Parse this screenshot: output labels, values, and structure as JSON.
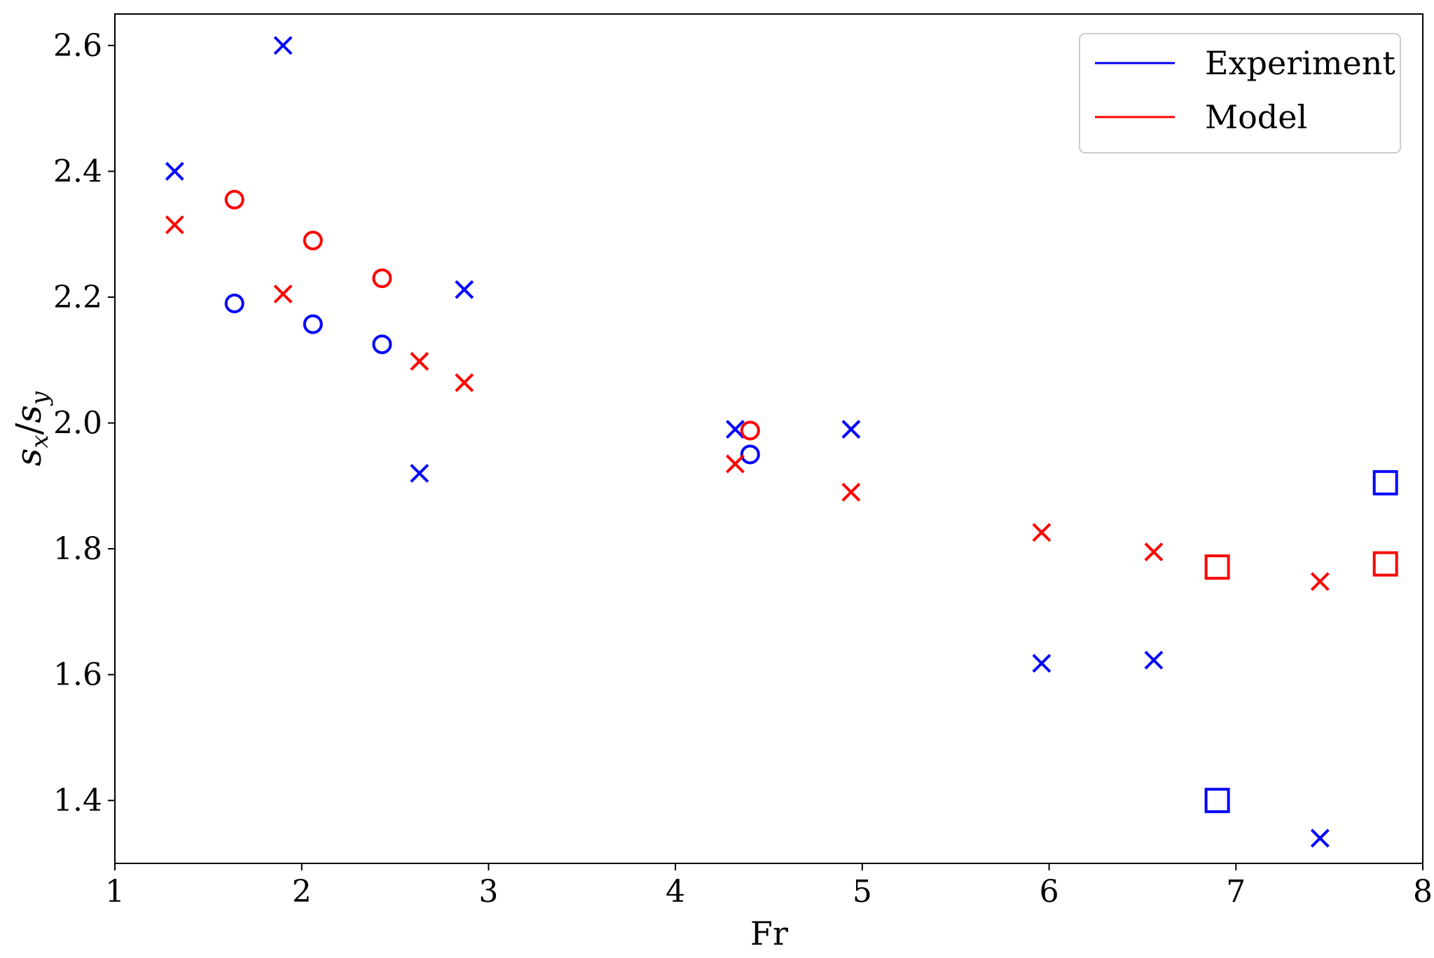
{
  "chart_data": {
    "type": "scatter",
    "xlabel": "Fr",
    "ylabel": {
      "base": "s",
      "num_sub": "x",
      "den_sub": "y"
    },
    "xlim": [
      1,
      8
    ],
    "ylim": [
      1.3,
      2.65
    ],
    "xticks": [
      "1",
      "2",
      "3",
      "4",
      "5",
      "6",
      "7",
      "8"
    ],
    "yticks": [
      "1.4",
      "1.6",
      "1.8",
      "2.0",
      "2.2",
      "2.4",
      "2.6"
    ],
    "grid": false,
    "legend": {
      "position": "top-right",
      "entries": [
        {
          "label": "Experiment",
          "color": "#0000ff"
        },
        {
          "label": "Model",
          "color": "#ff0000"
        }
      ]
    },
    "series": [
      {
        "name": "Experiment",
        "color": "#0000ff",
        "points": [
          {
            "x": 1.32,
            "y": 2.4,
            "marker": "x"
          },
          {
            "x": 1.9,
            "y": 2.6,
            "marker": "x"
          },
          {
            "x": 1.64,
            "y": 2.19,
            "marker": "o"
          },
          {
            "x": 2.06,
            "y": 2.157,
            "marker": "o"
          },
          {
            "x": 2.43,
            "y": 2.125,
            "marker": "o"
          },
          {
            "x": 2.63,
            "y": 1.92,
            "marker": "x"
          },
          {
            "x": 2.87,
            "y": 2.212,
            "marker": "x"
          },
          {
            "x": 4.32,
            "y": 1.99,
            "marker": "x"
          },
          {
            "x": 4.4,
            "y": 1.95,
            "marker": "o"
          },
          {
            "x": 4.94,
            "y": 1.99,
            "marker": "x"
          },
          {
            "x": 5.96,
            "y": 1.618,
            "marker": "x"
          },
          {
            "x": 6.56,
            "y": 1.623,
            "marker": "x"
          },
          {
            "x": 6.9,
            "y": 1.4,
            "marker": "s"
          },
          {
            "x": 7.45,
            "y": 1.34,
            "marker": "x"
          },
          {
            "x": 7.8,
            "y": 1.905,
            "marker": "s"
          }
        ]
      },
      {
        "name": "Model",
        "color": "#ff0000",
        "points": [
          {
            "x": 1.32,
            "y": 2.315,
            "marker": "x"
          },
          {
            "x": 1.64,
            "y": 2.355,
            "marker": "o"
          },
          {
            "x": 1.9,
            "y": 2.205,
            "marker": "x"
          },
          {
            "x": 2.06,
            "y": 2.29,
            "marker": "o"
          },
          {
            "x": 2.43,
            "y": 2.23,
            "marker": "o"
          },
          {
            "x": 2.63,
            "y": 2.098,
            "marker": "x"
          },
          {
            "x": 2.87,
            "y": 2.064,
            "marker": "x"
          },
          {
            "x": 4.32,
            "y": 1.935,
            "marker": "x"
          },
          {
            "x": 4.4,
            "y": 1.988,
            "marker": "o"
          },
          {
            "x": 4.94,
            "y": 1.89,
            "marker": "x"
          },
          {
            "x": 5.96,
            "y": 1.826,
            "marker": "x"
          },
          {
            "x": 6.56,
            "y": 1.795,
            "marker": "x"
          },
          {
            "x": 6.9,
            "y": 1.771,
            "marker": "s"
          },
          {
            "x": 7.45,
            "y": 1.748,
            "marker": "x"
          },
          {
            "x": 7.8,
            "y": 1.776,
            "marker": "s"
          }
        ]
      }
    ]
  }
}
